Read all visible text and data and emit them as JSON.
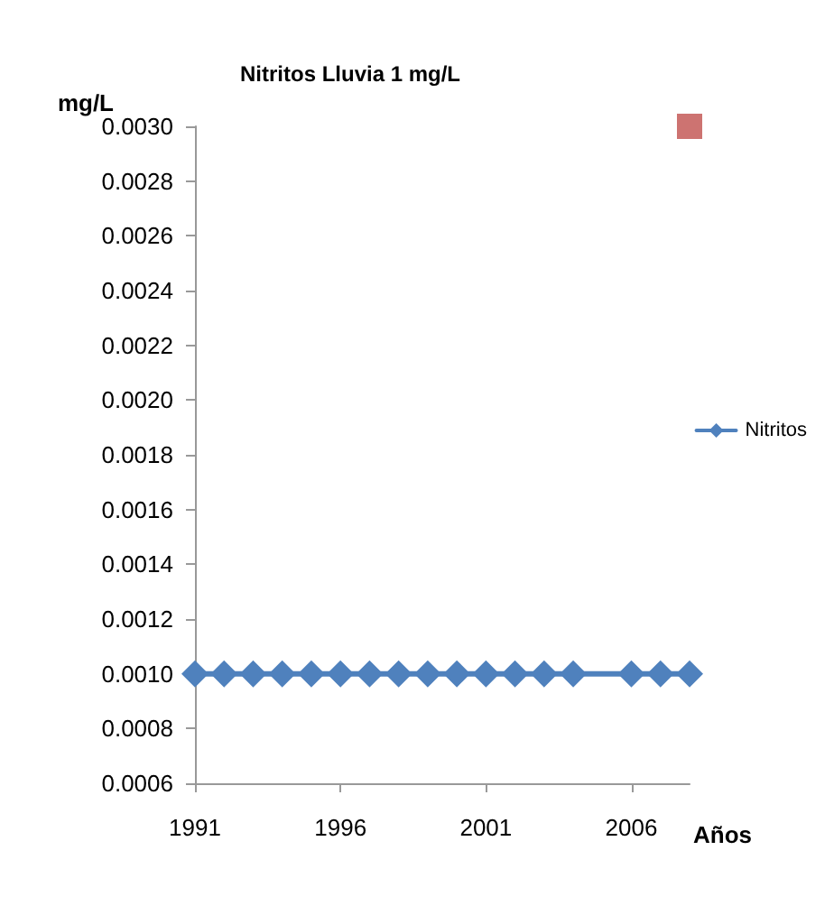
{
  "chart_data": {
    "type": "line",
    "title": "Nitritos Lluvia 1 mg/L",
    "ylabel": "mg/L",
    "xlabel": "Años",
    "xlim": [
      1991,
      2008
    ],
    "xticks": [
      1991,
      1996,
      2001,
      2006
    ],
    "ylim": [
      0.0006,
      0.003
    ],
    "yticks": [
      0.0006,
      0.0008,
      {
        "value": 0.001,
        "label": "0.0010"
      },
      0.0012,
      0.0014,
      0.0016,
      0.0018,
      {
        "value": 0.002,
        "label": "0.0020"
      },
      0.0022,
      0.0024,
      0.0026,
      0.0028,
      {
        "value": 0.003,
        "label": "0.0030"
      }
    ],
    "grid": false,
    "legend": "right",
    "marker": "diamond",
    "line_style": "solid",
    "series": [
      {
        "name": "Nitritos",
        "color": "#4f81bd",
        "x": [
          1991,
          1992,
          1993,
          1994,
          1995,
          1996,
          1997,
          1998,
          1999,
          2000,
          2001,
          2002,
          2003,
          2004,
          2006,
          2007,
          2008
        ],
        "values": [
          0.001,
          0.001,
          0.001,
          0.001,
          0.001,
          0.001,
          0.001,
          0.001,
          0.001,
          0.001,
          0.001,
          0.001,
          0.001,
          0.001,
          0.001,
          0.001,
          0.001
        ]
      },
      {
        "type": "scatter",
        "marker": "square",
        "color": "#c0504d",
        "x": [
          2008
        ],
        "values": [
          0.003
        ]
      }
    ]
  }
}
